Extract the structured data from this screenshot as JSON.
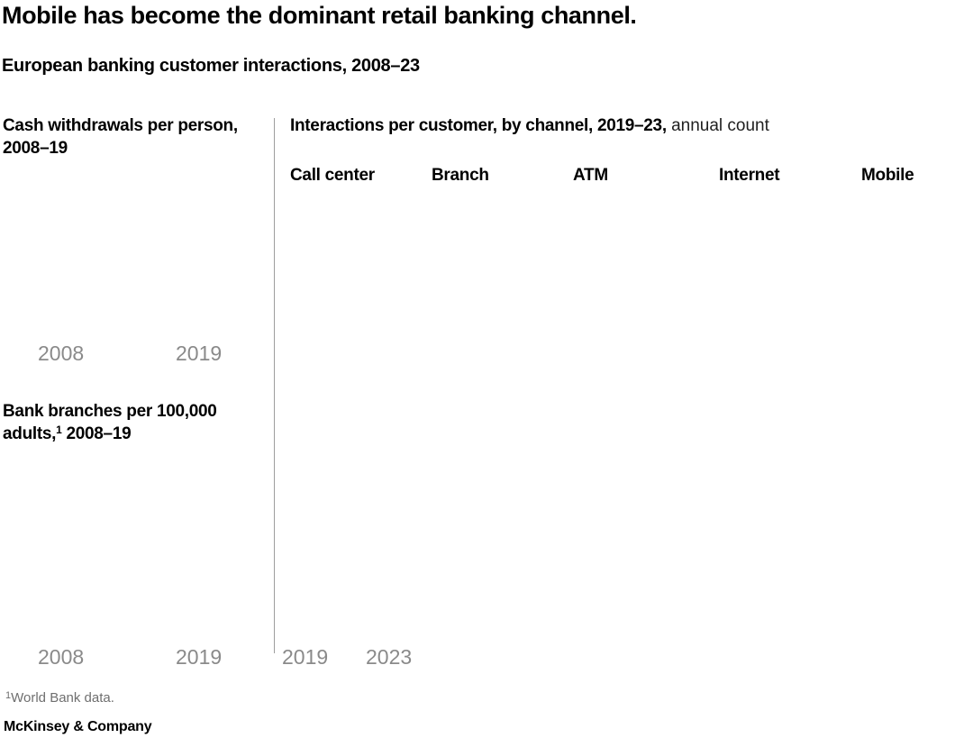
{
  "header": {
    "title": "Mobile has become the dominant retail banking channel.",
    "subtitle": "European banking customer interactions, 2008–23"
  },
  "left_panel": {
    "chart1": {
      "title": "Cash withdrawals per person, 2008–19",
      "x_ticks": [
        "2008",
        "2019"
      ]
    },
    "chart2": {
      "title_part1": "Bank branches per 100,000 adults,",
      "title_superscript": "1",
      "title_part2": " 2008–19",
      "x_ticks": [
        "2008",
        "2019"
      ]
    }
  },
  "right_panel": {
    "title_bold": "Interactions per customer, by channel, 2019–23,",
    "title_regular": " annual count",
    "columns": [
      "Call center",
      "Branch",
      "ATM",
      "Internet",
      "Mobile"
    ],
    "x_ticks": [
      "2019",
      "2023"
    ]
  },
  "footnote": {
    "superscript": "1",
    "text": "World Bank data."
  },
  "branding": "McKinsey & Company",
  "colors": {
    "background": "#ffffff",
    "title_text": "#000000",
    "axis_label": "#8a8a8a",
    "footnote_text": "#6f6f6f",
    "divider": "#9e9e9e"
  },
  "chart_data": [
    {
      "type": "line",
      "title": "Cash withdrawals per person, 2008–19",
      "x_ticks": [
        "2008",
        "2019"
      ],
      "series": [],
      "note": "plot area rendered empty in screenshot"
    },
    {
      "type": "line",
      "title": "Bank branches per 100,000 adults, 2008–19",
      "x_ticks": [
        "2008",
        "2019"
      ],
      "series": [],
      "note": "plot area rendered empty in screenshot"
    },
    {
      "type": "line",
      "title": "Interactions per customer, by channel, 2019–23, annual count",
      "categories": [
        "Call center",
        "Branch",
        "ATM",
        "Internet",
        "Mobile"
      ],
      "x_ticks": [
        "2019",
        "2023"
      ],
      "series": [],
      "note": "plot area rendered empty in screenshot"
    }
  ]
}
